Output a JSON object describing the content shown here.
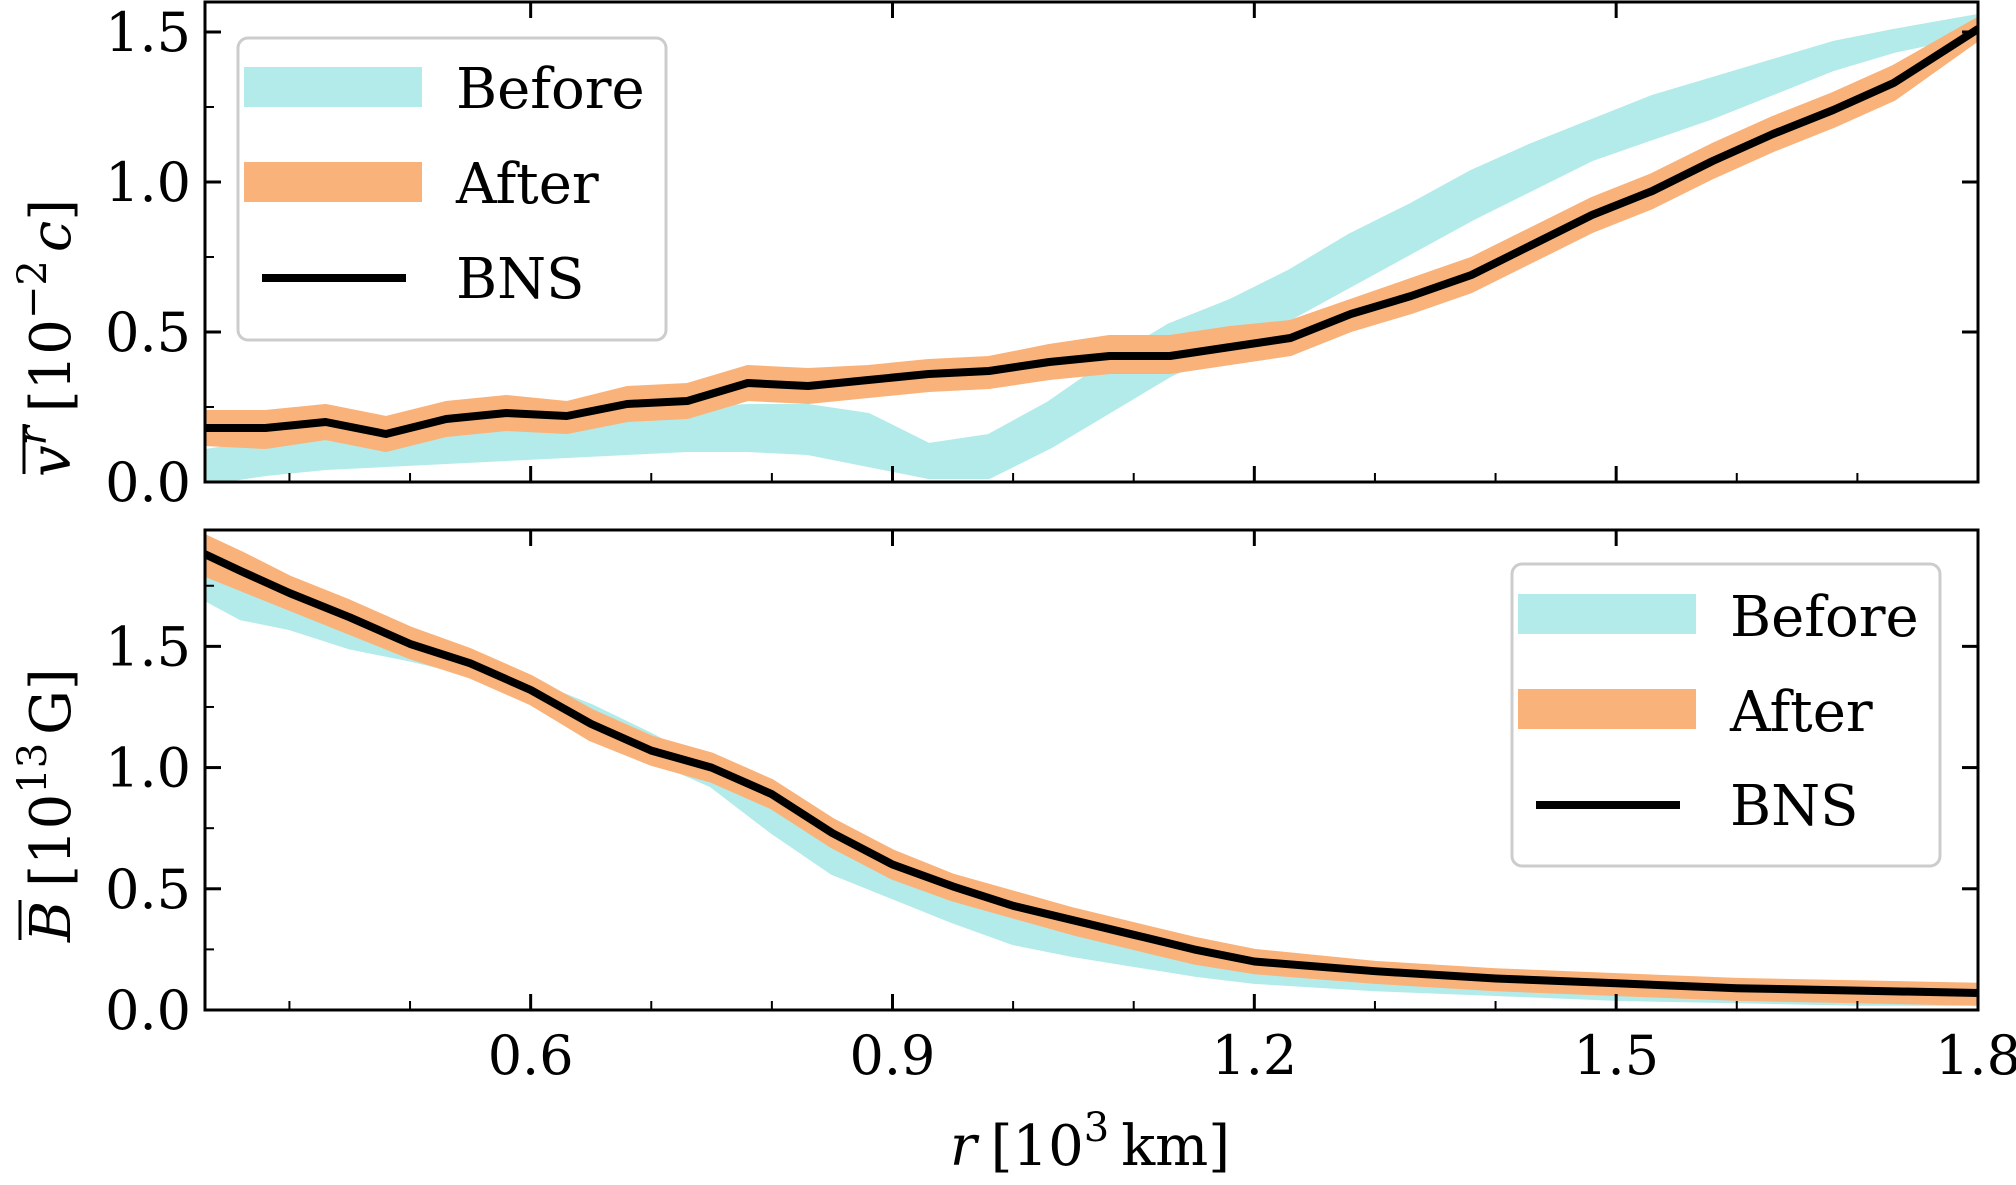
{
  "chart_data": [
    {
      "type": "line",
      "panel": "top",
      "ylabel_var": "v",
      "ylabel_sup": "r",
      "ylabel_unit_pre": "[10",
      "ylabel_unit_sup": "−2",
      "ylabel_unit_var": "c",
      "ylabel_unit_post": "]",
      "xlim": [
        0.33,
        1.8
      ],
      "ylim": [
        0.0,
        1.6
      ],
      "yticks": [
        "0.0",
        "0.5",
        "1.0",
        "1.5"
      ],
      "yticks_values": [
        0.0,
        0.5,
        1.0,
        1.5
      ],
      "legend_position": "upper-left",
      "legend": [
        {
          "label": "Before",
          "style": "band",
          "color": "#b2ebea"
        },
        {
          "label": "After",
          "style": "band",
          "color": "#f9b27a"
        },
        {
          "label": "BNS",
          "style": "line",
          "color": "#000000"
        }
      ],
      "x": [
        0.33,
        0.38,
        0.43,
        0.48,
        0.53,
        0.58,
        0.63,
        0.68,
        0.73,
        0.78,
        0.83,
        0.88,
        0.93,
        0.98,
        1.03,
        1.08,
        1.13,
        1.18,
        1.23,
        1.28,
        1.33,
        1.38,
        1.43,
        1.48,
        1.53,
        1.58,
        1.63,
        1.68,
        1.73,
        1.8
      ],
      "series": [
        {
          "name": "Before",
          "style": "band",
          "color": "#b2ebea",
          "upper": [
            0.1,
            0.13,
            0.15,
            0.17,
            0.19,
            0.21,
            0.22,
            0.23,
            0.24,
            0.25,
            0.25,
            0.22,
            0.12,
            0.15,
            0.26,
            0.4,
            0.52,
            0.6,
            0.7,
            0.82,
            0.92,
            1.03,
            1.12,
            1.2,
            1.28,
            1.34,
            1.4,
            1.46,
            1.5,
            1.55
          ],
          "lower": [
            0.0,
            0.03,
            0.05,
            0.06,
            0.07,
            0.08,
            0.09,
            0.1,
            0.11,
            0.11,
            0.1,
            0.06,
            0.02,
            0.02,
            0.12,
            0.24,
            0.36,
            0.45,
            0.55,
            0.66,
            0.77,
            0.88,
            0.98,
            1.08,
            1.15,
            1.22,
            1.3,
            1.38,
            1.44,
            1.5
          ]
        },
        {
          "name": "After",
          "style": "band",
          "color": "#f9b27a",
          "upper": [
            0.23,
            0.23,
            0.25,
            0.21,
            0.26,
            0.28,
            0.26,
            0.31,
            0.32,
            0.38,
            0.37,
            0.38,
            0.4,
            0.41,
            0.45,
            0.48,
            0.48,
            0.51,
            0.53,
            0.6,
            0.67,
            0.74,
            0.84,
            0.94,
            1.02,
            1.12,
            1.21,
            1.29,
            1.38,
            1.54
          ],
          "lower": [
            0.13,
            0.12,
            0.15,
            0.11,
            0.16,
            0.18,
            0.17,
            0.21,
            0.22,
            0.28,
            0.27,
            0.29,
            0.31,
            0.32,
            0.35,
            0.37,
            0.37,
            0.4,
            0.43,
            0.51,
            0.57,
            0.64,
            0.74,
            0.84,
            0.92,
            1.02,
            1.11,
            1.19,
            1.28,
            1.48
          ]
        },
        {
          "name": "BNS",
          "style": "line",
          "color": "#000000",
          "values": [
            0.18,
            0.18,
            0.2,
            0.16,
            0.21,
            0.23,
            0.22,
            0.26,
            0.27,
            0.33,
            0.32,
            0.34,
            0.36,
            0.37,
            0.4,
            0.42,
            0.42,
            0.45,
            0.48,
            0.56,
            0.62,
            0.69,
            0.79,
            0.89,
            0.97,
            1.07,
            1.16,
            1.24,
            1.33,
            1.51
          ]
        }
      ]
    },
    {
      "type": "line",
      "panel": "bottom",
      "ylabel_var": "B",
      "ylabel_unit_pre": "[10",
      "ylabel_unit_sup": "13",
      "ylabel_unit_post": "G]",
      "xlabel_var": "r",
      "xlabel_unit_pre": "[10",
      "xlabel_unit_sup": "3",
      "xlabel_unit_post": "km]",
      "xlim": [
        0.33,
        1.8
      ],
      "ylim": [
        0.0,
        1.98
      ],
      "yticks": [
        "0.0",
        "0.5",
        "1.0",
        "1.5"
      ],
      "yticks_values": [
        0.0,
        0.5,
        1.0,
        1.5
      ],
      "xticks": [
        "0.6",
        "0.9",
        "1.2",
        "1.5",
        "1.8"
      ],
      "xticks_values": [
        0.6,
        0.9,
        1.2,
        1.5,
        1.8
      ],
      "legend_position": "upper-right",
      "legend": [
        {
          "label": "Before",
          "style": "band",
          "color": "#b2ebea"
        },
        {
          "label": "After",
          "style": "band",
          "color": "#f9b27a"
        },
        {
          "label": "BNS",
          "style": "line",
          "color": "#000000"
        }
      ],
      "x": [
        0.33,
        0.36,
        0.4,
        0.45,
        0.5,
        0.55,
        0.6,
        0.65,
        0.7,
        0.75,
        0.8,
        0.85,
        0.9,
        0.95,
        1.0,
        1.05,
        1.1,
        1.15,
        1.2,
        1.3,
        1.4,
        1.5,
        1.6,
        1.7,
        1.8
      ],
      "series": [
        {
          "name": "Before",
          "style": "band",
          "color": "#b2ebea",
          "upper": [
            1.85,
            1.82,
            1.73,
            1.62,
            1.5,
            1.43,
            1.35,
            1.25,
            1.13,
            1.0,
            0.85,
            0.68,
            0.55,
            0.45,
            0.37,
            0.3,
            0.25,
            0.21,
            0.18,
            0.15,
            0.13,
            0.11,
            0.1,
            0.09,
            0.09
          ],
          "lower": [
            1.7,
            1.62,
            1.58,
            1.5,
            1.45,
            1.39,
            1.28,
            1.16,
            1.04,
            0.93,
            0.74,
            0.57,
            0.47,
            0.37,
            0.28,
            0.23,
            0.19,
            0.15,
            0.12,
            0.09,
            0.07,
            0.05,
            0.04,
            0.03,
            0.03
          ]
        },
        {
          "name": "After",
          "style": "band",
          "color": "#f9b27a",
          "upper": [
            1.95,
            1.88,
            1.78,
            1.68,
            1.57,
            1.48,
            1.37,
            1.23,
            1.12,
            1.05,
            0.94,
            0.78,
            0.65,
            0.55,
            0.48,
            0.41,
            0.35,
            0.29,
            0.24,
            0.19,
            0.16,
            0.14,
            0.12,
            0.11,
            0.1
          ],
          "lower": [
            1.8,
            1.74,
            1.66,
            1.56,
            1.46,
            1.38,
            1.27,
            1.12,
            1.02,
            0.95,
            0.84,
            0.68,
            0.55,
            0.46,
            0.39,
            0.32,
            0.26,
            0.2,
            0.16,
            0.12,
            0.09,
            0.07,
            0.05,
            0.04,
            0.03
          ]
        },
        {
          "name": "BNS",
          "style": "line",
          "color": "#000000",
          "values": [
            1.88,
            1.81,
            1.72,
            1.62,
            1.51,
            1.43,
            1.32,
            1.18,
            1.07,
            1.0,
            0.89,
            0.73,
            0.6,
            0.51,
            0.43,
            0.37,
            0.31,
            0.25,
            0.2,
            0.16,
            0.13,
            0.11,
            0.09,
            0.08,
            0.07
          ]
        }
      ]
    }
  ]
}
